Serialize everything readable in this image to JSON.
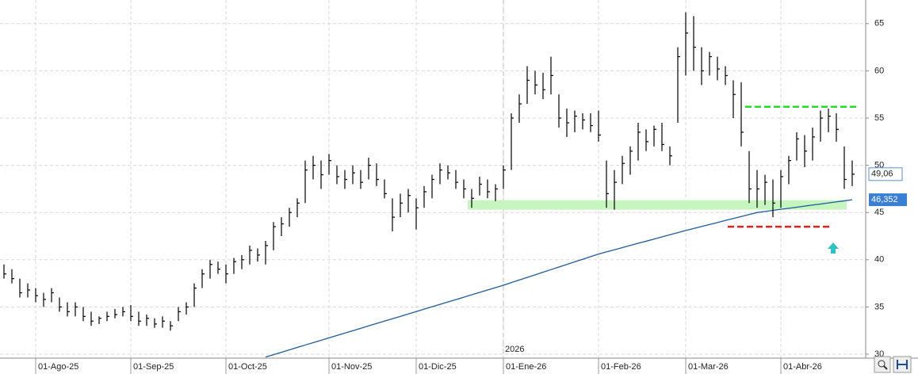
{
  "chart_data": {
    "type": "ohlc",
    "categories": [
      null,
      null,
      null,
      null,
      "01-Ago-25",
      null,
      null,
      null,
      null,
      null,
      null,
      null,
      null,
      null,
      null,
      null,
      "01-Sep-25",
      null,
      null,
      null,
      null,
      null,
      null,
      null,
      null,
      null,
      null,
      null,
      "01-Oct-25",
      null,
      null,
      null,
      null,
      null,
      null,
      null,
      null,
      null,
      null,
      null,
      null,
      "01-Nov-25",
      null,
      null,
      null,
      null,
      null,
      null,
      null,
      null,
      null,
      null,
      "01-Dic-25",
      null,
      null,
      null,
      null,
      null,
      null,
      null,
      null,
      null,
      null,
      "01-Ene-26",
      null,
      null,
      null,
      null,
      null,
      null,
      null,
      null,
      null,
      null,
      null,
      "01-Feb-26",
      null,
      null,
      null,
      null,
      null,
      null,
      null,
      null,
      null,
      null,
      "01-Mar-26",
      null,
      null,
      null,
      null,
      null,
      null,
      null,
      null,
      null,
      null,
      null,
      "01-Abr-26",
      null,
      null,
      null,
      null,
      null,
      null,
      null,
      null,
      null
    ],
    "high": [
      39.5,
      39,
      38,
      37.5,
      37,
      36.5,
      37,
      36,
      35.5,
      35.5,
      35,
      34.5,
      34,
      34.5,
      34.8,
      35,
      35.2,
      34.5,
      34.2,
      33.8,
      34,
      33.5,
      35,
      35.5,
      37.5,
      39,
      40,
      39.8,
      39.5,
      40.2,
      40.5,
      41.5,
      41.2,
      42,
      44,
      44.5,
      45.5,
      46.5,
      50.5,
      51,
      50.5,
      51.2,
      50,
      49.5,
      50,
      49.5,
      50.8,
      50.2,
      48.5,
      46.5,
      47,
      47.5,
      46.5,
      47.8,
      49,
      50.2,
      50,
      49.5,
      48.5,
      47.5,
      48.8,
      48.5,
      48,
      50,
      55.5,
      57.5,
      60.5,
      60,
      59.8,
      61.5,
      57.5,
      56,
      55.8,
      55.5,
      55.5,
      55.8,
      50.5,
      49.5,
      51,
      52,
      54.5,
      53.8,
      54.2,
      54.5,
      52,
      62.5,
      66.2,
      65.8,
      62.5,
      62,
      61.5,
      60.5,
      59,
      58.8,
      51.5,
      49.5,
      49,
      48.5,
      49.5,
      51,
      53.5,
      53.2,
      54,
      55.8,
      56,
      55.5,
      52,
      50.5
    ],
    "low": [
      38,
      37.5,
      36,
      36,
      35.5,
      35,
      35.5,
      34.5,
      34,
      34,
      33.5,
      33,
      33.2,
      33.5,
      33.8,
      34,
      33.5,
      33,
      33,
      32.8,
      32.8,
      32.5,
      33.5,
      34.2,
      35,
      37,
      38,
      38.5,
      37.5,
      38.5,
      39,
      39.5,
      39.8,
      39.5,
      41,
      42.5,
      43.5,
      44.5,
      46,
      48.5,
      47.5,
      49,
      48,
      47.5,
      48,
      47.5,
      48.5,
      47.8,
      46.5,
      43,
      44.5,
      45,
      43.2,
      45.5,
      46.5,
      48,
      48.5,
      47.5,
      46.5,
      45.5,
      46.8,
      46.5,
      46.2,
      47.5,
      49.5,
      54.5,
      56.5,
      57.5,
      57,
      57.5,
      54,
      53,
      53.5,
      53.8,
      53.5,
      52.5,
      45.5,
      45.3,
      48,
      49,
      50.5,
      51.5,
      52,
      51.5,
      50,
      54.5,
      59.5,
      60,
      58.5,
      59.5,
      59,
      58.5,
      55,
      52,
      46,
      45.5,
      45.8,
      44.5,
      45.5,
      48,
      50.5,
      49.8,
      50.5,
      52.5,
      53.5,
      52.5,
      47.5,
      47.8
    ],
    "close": [
      38.5,
      38,
      36.5,
      36.8,
      36.2,
      35.8,
      36.5,
      35,
      34.5,
      35,
      34,
      33.5,
      33.8,
      34,
      34.2,
      34.5,
      34,
      33.5,
      33.8,
      33.2,
      33.5,
      33,
      34.5,
      35,
      37,
      38.5,
      39.5,
      39,
      38.5,
      39.8,
      40,
      41,
      40.5,
      41.5,
      43.5,
      43.8,
      45,
      46,
      49.5,
      50,
      49,
      50.5,
      48.8,
      48.5,
      49.2,
      48.2,
      50,
      48.5,
      47,
      44.5,
      46,
      46.8,
      45.5,
      47.2,
      48.5,
      49.5,
      49.2,
      48.2,
      47.5,
      46.5,
      48,
      47.2,
      47.5,
      49.5,
      55,
      56.5,
      59,
      58.5,
      58,
      59.5,
      55,
      54.5,
      55.2,
      54.8,
      54.2,
      53.2,
      47,
      48.2,
      50.2,
      51.5,
      53.5,
      52.5,
      53.8,
      52.2,
      51,
      61.5,
      64,
      62.5,
      60,
      61.5,
      60.2,
      59.5,
      57.5,
      53.5,
      47.5,
      47.5,
      48.2,
      46,
      48.8,
      50.5,
      52.8,
      51.5,
      53,
      55,
      55.2,
      53.8,
      48.5,
      49.06
    ],
    "color": "#000000",
    "moving_average": {
      "color": "#1f5c99",
      "values": [
        null,
        null,
        null,
        null,
        null,
        null,
        null,
        null,
        null,
        null,
        null,
        null,
        null,
        null,
        null,
        null,
        null,
        null,
        null,
        null,
        null,
        null,
        null,
        null,
        null,
        null,
        null,
        null,
        null,
        null,
        null,
        null,
        null,
        29.7,
        29.95,
        30.2,
        30.46,
        30.71,
        30.97,
        31.22,
        31.47,
        31.73,
        31.98,
        32.23,
        32.49,
        32.74,
        33.0,
        33.25,
        33.5,
        33.75,
        34.0,
        34.26,
        34.51,
        34.77,
        35.02,
        35.27,
        35.53,
        35.78,
        36.03,
        36.29,
        36.54,
        36.8,
        37.05,
        37.3,
        37.58,
        37.85,
        38.13,
        38.4,
        38.68,
        38.95,
        39.23,
        39.5,
        39.78,
        40.05,
        40.33,
        40.6,
        40.83,
        41.05,
        41.28,
        41.51,
        41.74,
        41.96,
        42.19,
        42.42,
        42.65,
        42.87,
        43.1,
        43.31,
        43.52,
        43.73,
        43.94,
        44.16,
        44.37,
        44.58,
        44.79,
        45.0,
        45.11,
        45.23,
        45.34,
        45.45,
        45.56,
        45.68,
        45.79,
        45.9,
        46.01,
        46.13,
        46.24,
        46.352
      ]
    },
    "last_price": {
      "value": 49.06,
      "label": "49,06"
    },
    "last_average": {
      "value": 46.352,
      "label": "46,352"
    },
    "year_marker": "2026",
    "resistance_level": 56.2,
    "resistance_color": "#22dd22",
    "support_level": 43.5,
    "support_color": "#dd2222",
    "support_zone": [
      45.3,
      46.3
    ],
    "support_zone_color": "#c6f5c0",
    "ylim": [
      30,
      67.5
    ],
    "yticks": [
      30,
      35,
      40,
      45,
      50,
      55,
      60,
      65
    ],
    "grid": true
  }
}
